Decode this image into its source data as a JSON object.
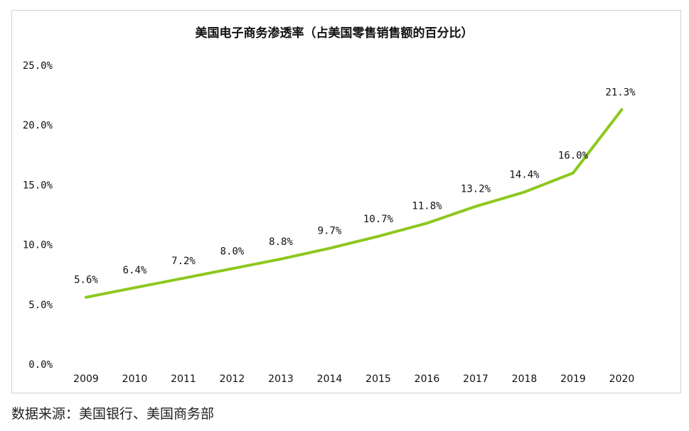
{
  "chart_data": {
    "type": "line",
    "title": "美国电子商务渗透率（占美国零售销售额的百分比）",
    "xlabel": "",
    "ylabel": "",
    "categories": [
      "2009",
      "2010",
      "2011",
      "2012",
      "2013",
      "2014",
      "2015",
      "2016",
      "2017",
      "2018",
      "2019",
      "2020"
    ],
    "series": [
      {
        "values": [
          5.6,
          6.4,
          7.2,
          8.0,
          8.8,
          9.7,
          10.7,
          11.8,
          13.2,
          14.4,
          16.0,
          21.3
        ],
        "labels": [
          "5.6%",
          "6.4%",
          "7.2%",
          "8.0%",
          "8.8%",
          "9.7%",
          "10.7%",
          "11.8%",
          "13.2%",
          "14.4%",
          "16.0%",
          "21.3%"
        ],
        "color": "#8cc81e"
      }
    ],
    "ylim": [
      0,
      25
    ],
    "yticks": [
      0,
      5,
      10,
      15,
      20,
      25
    ],
    "ytick_labels": [
      "0.0%",
      "5.0%",
      "10.0%",
      "15.0%",
      "20.0%",
      "25.0%"
    ],
    "grid": false,
    "legend": "none"
  },
  "source_note": "数据来源：美国银行、美国商务部"
}
